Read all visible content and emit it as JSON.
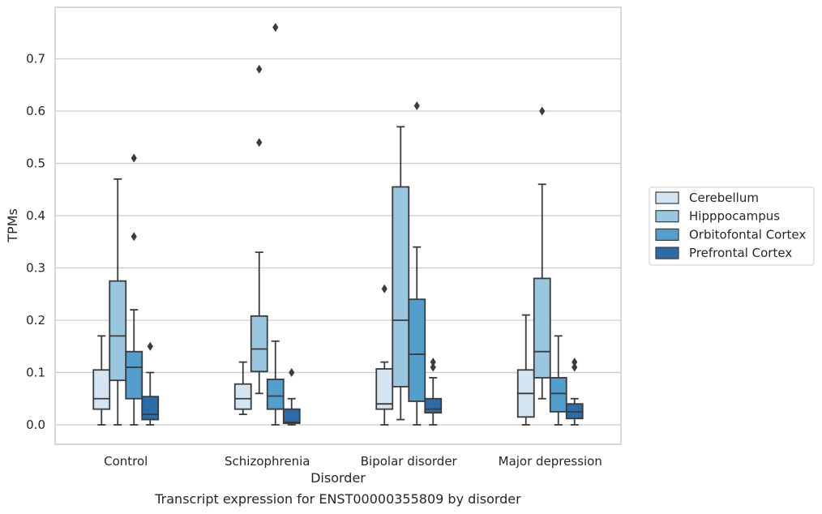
{
  "caption": "Transcript expression for ENST00000355809 by disorder",
  "chart_data": {
    "type": "boxplot",
    "title": "",
    "xlabel": "Disorder",
    "ylabel": "TPMs",
    "ylim": [
      -0.04,
      0.8
    ],
    "yticks": [
      0.0,
      0.1,
      0.2,
      0.3,
      0.4,
      0.5,
      0.6,
      0.7
    ],
    "ytick_labels": [
      "0.0",
      "0.1",
      "0.2",
      "0.3",
      "0.4",
      "0.5",
      "0.6",
      "0.7"
    ],
    "grid": "horizontal",
    "legend_position": "right",
    "categories": [
      "Control",
      "Schizophrenia",
      "Bipolar disorder",
      "Major depression"
    ],
    "series": [
      {
        "name": "Cerebellum",
        "color": "#d3e4f3",
        "boxes": [
          {
            "whisker_low": 0.0,
            "q1": 0.03,
            "median": 0.05,
            "q3": 0.105,
            "whisker_high": 0.17,
            "outliers": []
          },
          {
            "whisker_low": 0.02,
            "q1": 0.03,
            "median": 0.05,
            "q3": 0.078,
            "whisker_high": 0.12,
            "outliers": []
          },
          {
            "whisker_low": 0.0,
            "q1": 0.03,
            "median": 0.04,
            "q3": 0.107,
            "whisker_high": 0.12,
            "outliers": [
              0.26
            ]
          },
          {
            "whisker_low": 0.0,
            "q1": 0.015,
            "median": 0.06,
            "q3": 0.105,
            "whisker_high": 0.21,
            "outliers": []
          }
        ]
      },
      {
        "name": "Hipppocampus",
        "color": "#9ac7e0",
        "boxes": [
          {
            "whisker_low": 0.0,
            "q1": 0.085,
            "median": 0.17,
            "q3": 0.275,
            "whisker_high": 0.47,
            "outliers": []
          },
          {
            "whisker_low": 0.06,
            "q1": 0.102,
            "median": 0.145,
            "q3": 0.208,
            "whisker_high": 0.33,
            "outliers": [
              0.54,
              0.68
            ]
          },
          {
            "whisker_low": 0.01,
            "q1": 0.073,
            "median": 0.2,
            "q3": 0.455,
            "whisker_high": 0.57,
            "outliers": []
          },
          {
            "whisker_low": 0.05,
            "q1": 0.09,
            "median": 0.14,
            "q3": 0.28,
            "whisker_high": 0.46,
            "outliers": [
              0.6
            ]
          }
        ]
      },
      {
        "name": "Orbitofontal Cortex",
        "color": "#539ecd",
        "boxes": [
          {
            "whisker_low": 0.0,
            "q1": 0.05,
            "median": 0.11,
            "q3": 0.14,
            "whisker_high": 0.22,
            "outliers": [
              0.36,
              0.51
            ]
          },
          {
            "whisker_low": 0.0,
            "q1": 0.03,
            "median": 0.055,
            "q3": 0.087,
            "whisker_high": 0.16,
            "outliers": [
              0.76
            ]
          },
          {
            "whisker_low": 0.0,
            "q1": 0.045,
            "median": 0.135,
            "q3": 0.24,
            "whisker_high": 0.34,
            "outliers": [
              0.61
            ]
          },
          {
            "whisker_low": 0.0,
            "q1": 0.025,
            "median": 0.06,
            "q3": 0.09,
            "whisker_high": 0.17,
            "outliers": []
          }
        ]
      },
      {
        "name": "Prefrontal Cortex",
        "color": "#2b6ba6",
        "boxes": [
          {
            "whisker_low": 0.0,
            "q1": 0.01,
            "median": 0.02,
            "q3": 0.054,
            "whisker_high": 0.1,
            "outliers": [
              0.15
            ]
          },
          {
            "whisker_low": 0.0,
            "q1": 0.003,
            "median": 0.005,
            "q3": 0.03,
            "whisker_high": 0.05,
            "outliers": [
              0.1
            ]
          },
          {
            "whisker_low": 0.0,
            "q1": 0.023,
            "median": 0.03,
            "q3": 0.05,
            "whisker_high": 0.09,
            "outliers": [
              0.11,
              0.12
            ]
          },
          {
            "whisker_low": 0.0,
            "q1": 0.012,
            "median": 0.025,
            "q3": 0.04,
            "whisker_high": 0.05,
            "outliers": [
              0.11,
              0.12
            ]
          }
        ]
      }
    ]
  }
}
